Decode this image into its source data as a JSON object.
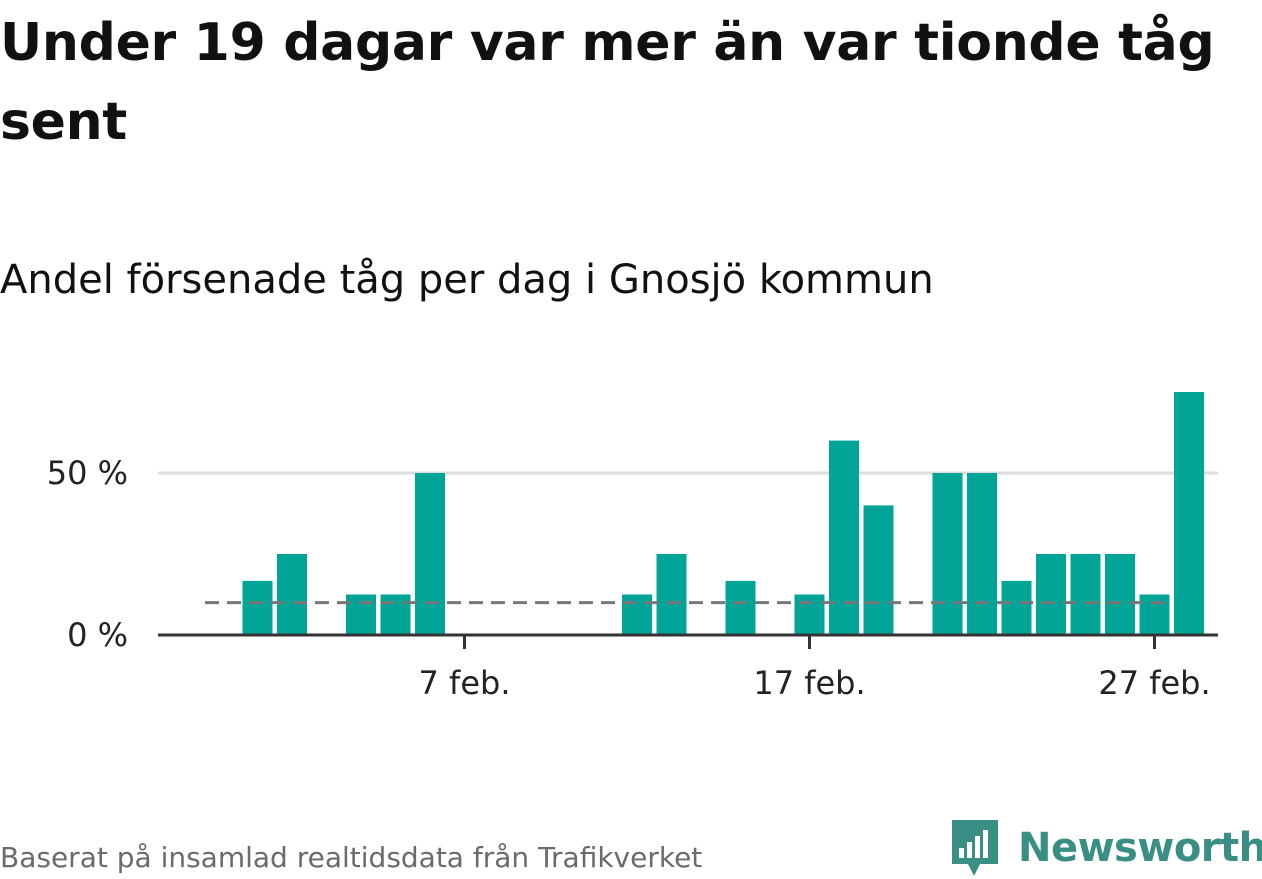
{
  "header": {
    "title": "Under 19 dagar var mer än var tionde tåg sent",
    "subtitle": "Andel försenade tåg per dag i Gnosjö kommun"
  },
  "footer": {
    "source": "Baserat på insamlad realtidsdata från Trafikverket",
    "brand": "Newsworthy",
    "brand_color": "#3a8f85"
  },
  "chart_data": {
    "type": "bar",
    "x": [
      "2024-02-01",
      "2024-02-02",
      "2024-02-03",
      "2024-02-04",
      "2024-02-05",
      "2024-02-06",
      "2024-02-07",
      "2024-02-08",
      "2024-02-09",
      "2024-02-10",
      "2024-02-11",
      "2024-02-12",
      "2024-02-13",
      "2024-02-14",
      "2024-02-15",
      "2024-02-16",
      "2024-02-17",
      "2024-02-18",
      "2024-02-19",
      "2024-02-20",
      "2024-02-21",
      "2024-02-22",
      "2024-02-23",
      "2024-02-24",
      "2024-02-25",
      "2024-02-26",
      "2024-02-27",
      "2024-02-28"
    ],
    "values": [
      16.7,
      25,
      null,
      12.5,
      12.5,
      50,
      null,
      null,
      null,
      null,
      null,
      12.5,
      25,
      null,
      16.7,
      null,
      12.5,
      60,
      40,
      null,
      50,
      50,
      16.7,
      25,
      25,
      25,
      12.5,
      75
    ],
    "reference_line": 10,
    "ylim": [
      0,
      80
    ],
    "yticks": [
      0,
      50
    ],
    "ytick_labels": [
      "0 %",
      "50 %"
    ],
    "xticks": [
      "2024-02-07",
      "2024-02-17",
      "2024-02-27"
    ],
    "xtick_labels": [
      "7 feb.",
      "17 feb.",
      "27 feb."
    ],
    "bar_color": "#00a598",
    "grid": true
  }
}
